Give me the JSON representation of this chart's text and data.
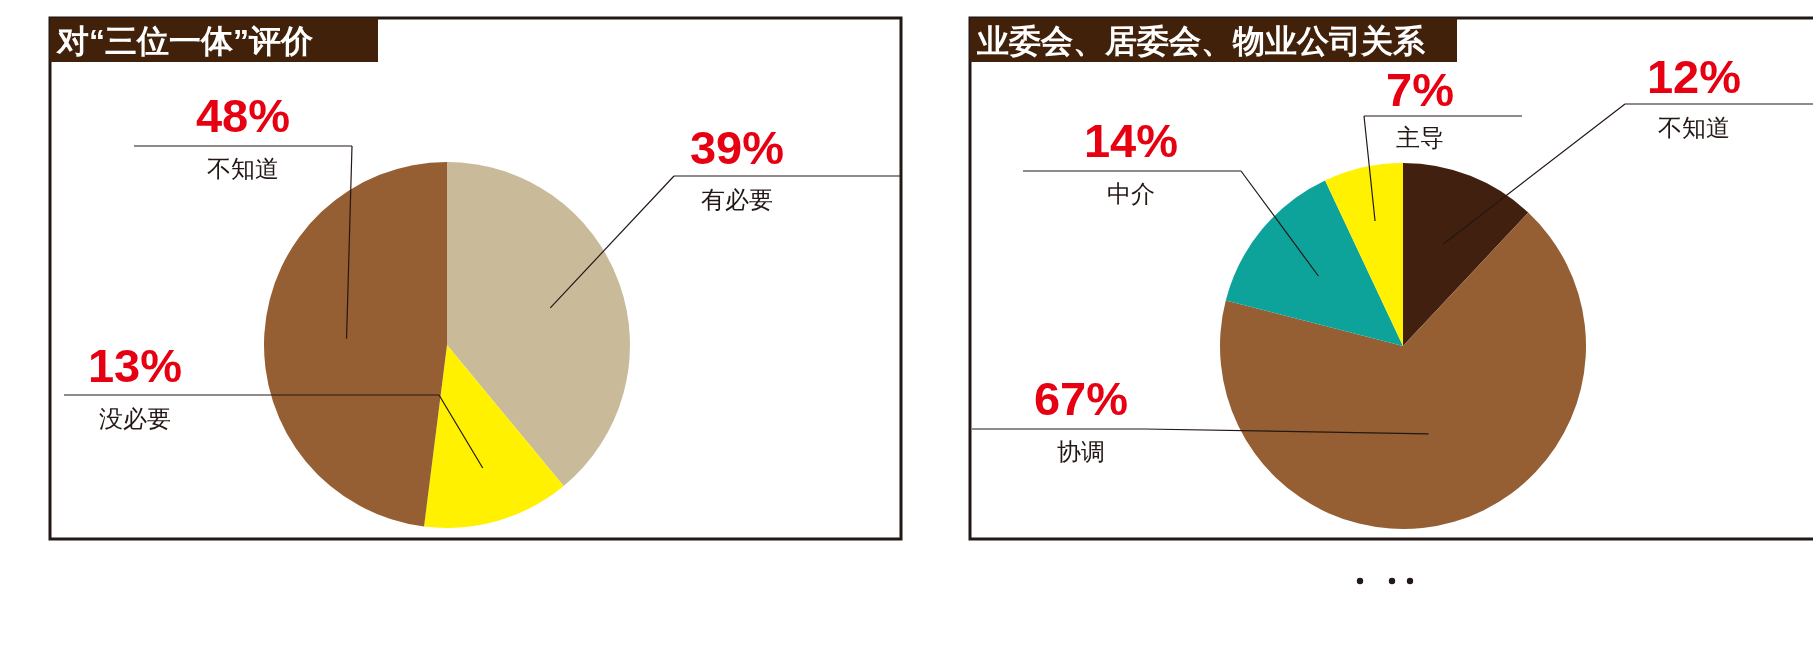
{
  "chart_data": [
    {
      "type": "pie",
      "title": "对“三位一体”评价",
      "categories": [
        "有必要",
        "没必要",
        "不知道"
      ],
      "values": [
        39,
        13,
        48
      ],
      "colors": [
        "#c9bb9a",
        "#fff100",
        "#955f33"
      ],
      "value_labels": [
        "39%",
        "13%",
        "48%"
      ]
    },
    {
      "type": "pie",
      "title": "业委会、居委会、物业公司关系",
      "categories": [
        "不知道",
        "协调",
        "中介",
        "主导"
      ],
      "values": [
        12,
        67,
        14,
        7
      ],
      "colors": [
        "#42200f",
        "#955f33",
        "#0ea39a",
        "#fff100"
      ],
      "value_labels": [
        "12%",
        "67%",
        "14%",
        "7%"
      ]
    }
  ]
}
